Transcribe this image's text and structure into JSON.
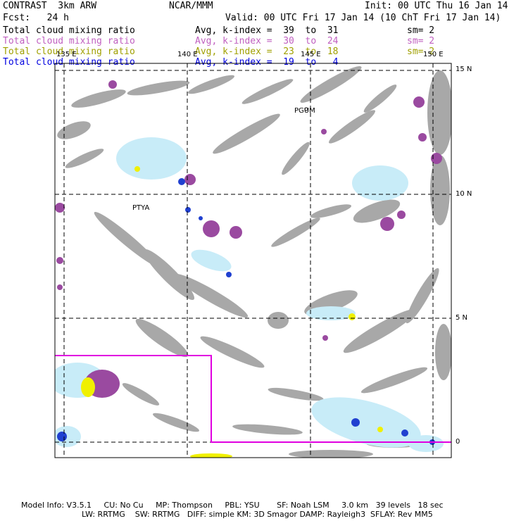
{
  "header": {
    "title": "CONTRAST  3km ARW",
    "center": "NCAR/MMM",
    "init": "Init: 00 UTC Thu 16 Jan 14",
    "fcst": "Fcst:   24 h",
    "valid": "Valid: 00 UTC Fri 17 Jan 14 (10 ChT Fri 17 Jan 14)"
  },
  "fields": [
    {
      "name": "Total cloud mixing ratio",
      "stat": "Avg, k-index =  39  to  31",
      "sm": "sm= 2",
      "color": "#000000"
    },
    {
      "name": "Total cloud mixing ratio",
      "stat": "Avg, k-index =  30  to  24",
      "sm": "sm= 2",
      "color": "#c060c0"
    },
    {
      "name": "Total cloud mixing ratio",
      "stat": "Avg, k-index =  23  to  18",
      "sm": "sm= 2",
      "color": "#a0a000"
    },
    {
      "name": "Total cloud mixing ratio",
      "stat": "Avg, k-index =  19  to   4",
      "sm": "",
      "color": "#0000e0"
    }
  ],
  "map": {
    "lon_labels": [
      "135 E",
      "140 E",
      "145 E",
      "150 E"
    ],
    "lat_labels": [
      "15 N",
      "10 N",
      "5 N",
      "0"
    ],
    "stations": [
      "PGUM",
      "PTYA"
    ]
  },
  "footer": {
    "line1": "Model Info: V3.5.1     CU: No Cu     MP: Thompson     PBL: YSU       SF: Noah LSM     3.0 km   39 levels   18 sec",
    "line2": "LW: RRTMG    SW: RRTMG   DIFF: simple KM: 3D Smagor DAMP: Rayleigh3  SFLAY: Rev MM5"
  },
  "colors": {
    "gray": "#a8a8a8",
    "purple": "#9a4aa0",
    "lightblue": "#c8ecf8",
    "blue": "#2040d0",
    "yellow": "#f0f000",
    "magenta": "#e000e0"
  }
}
